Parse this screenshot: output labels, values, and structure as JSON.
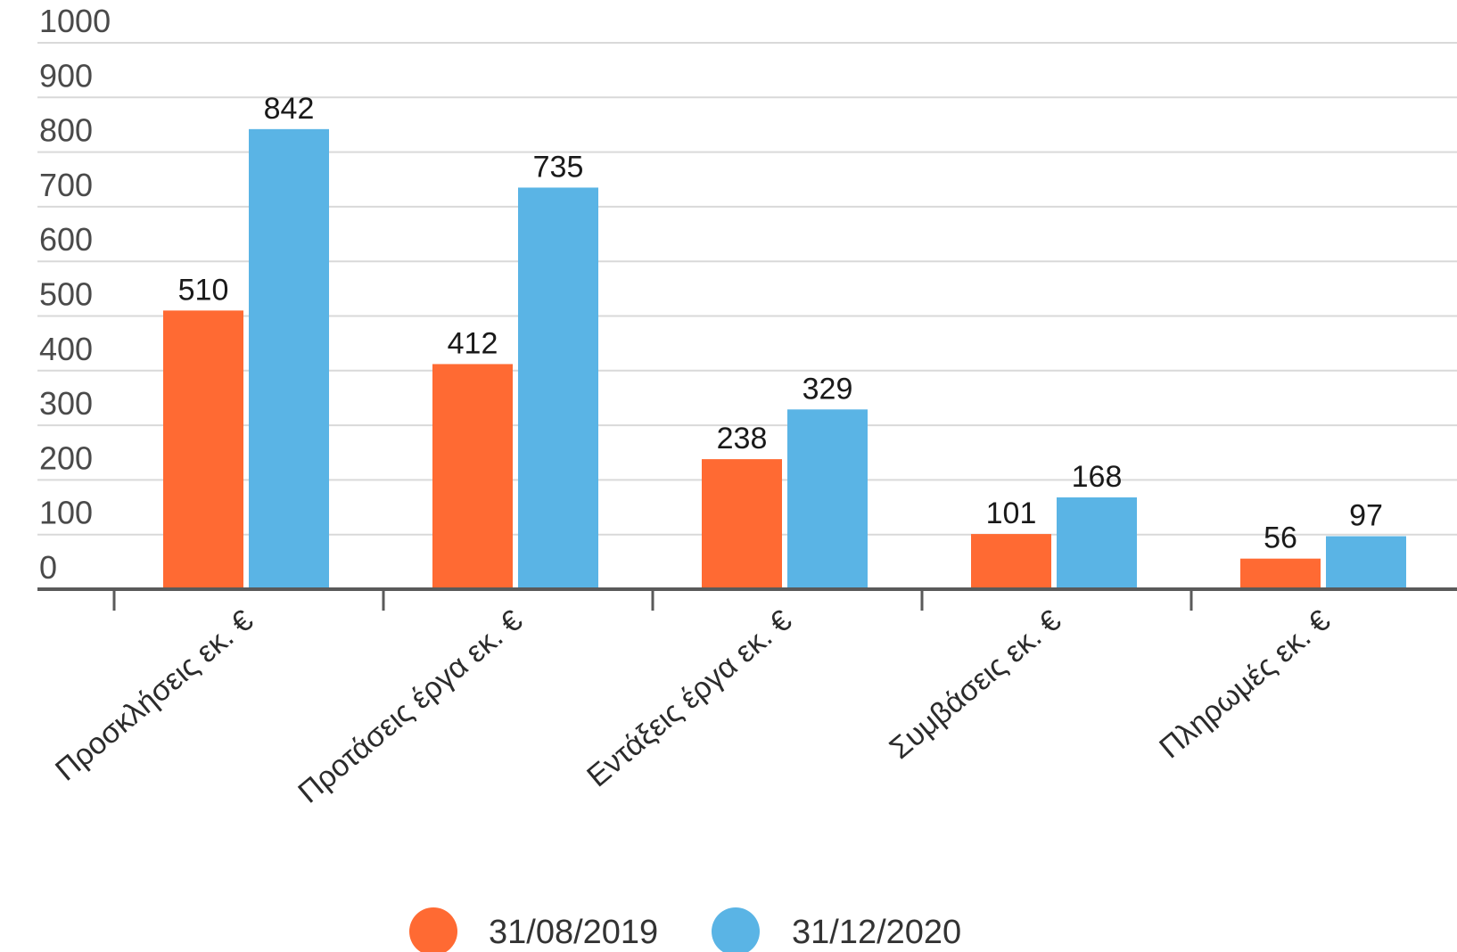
{
  "colors": {
    "series_0": "#ff6a33",
    "series_1": "#5ab4e5"
  },
  "chart_data": {
    "type": "bar",
    "categories": [
      "Προσκλήσεις εκ. €",
      "Προτάσεις έργα εκ. €",
      "Εντάξεις έργα εκ. €",
      "Συμβάσεις εκ. €",
      "Πληρωμές εκ. €"
    ],
    "series": [
      {
        "name": "31/08/2019",
        "values": [
          510,
          412,
          238,
          101,
          56
        ]
      },
      {
        "name": "31/12/2020",
        "values": [
          842,
          735,
          329,
          168,
          97
        ]
      }
    ],
    "yticks": [
      "0",
      "100",
      "200",
      "300",
      "400",
      "500",
      "600",
      "700",
      "800",
      "900",
      "1000"
    ],
    "ylim": [
      0,
      1000
    ],
    "grid": true,
    "legend_position": "bottom-center",
    "data_labels": true
  }
}
